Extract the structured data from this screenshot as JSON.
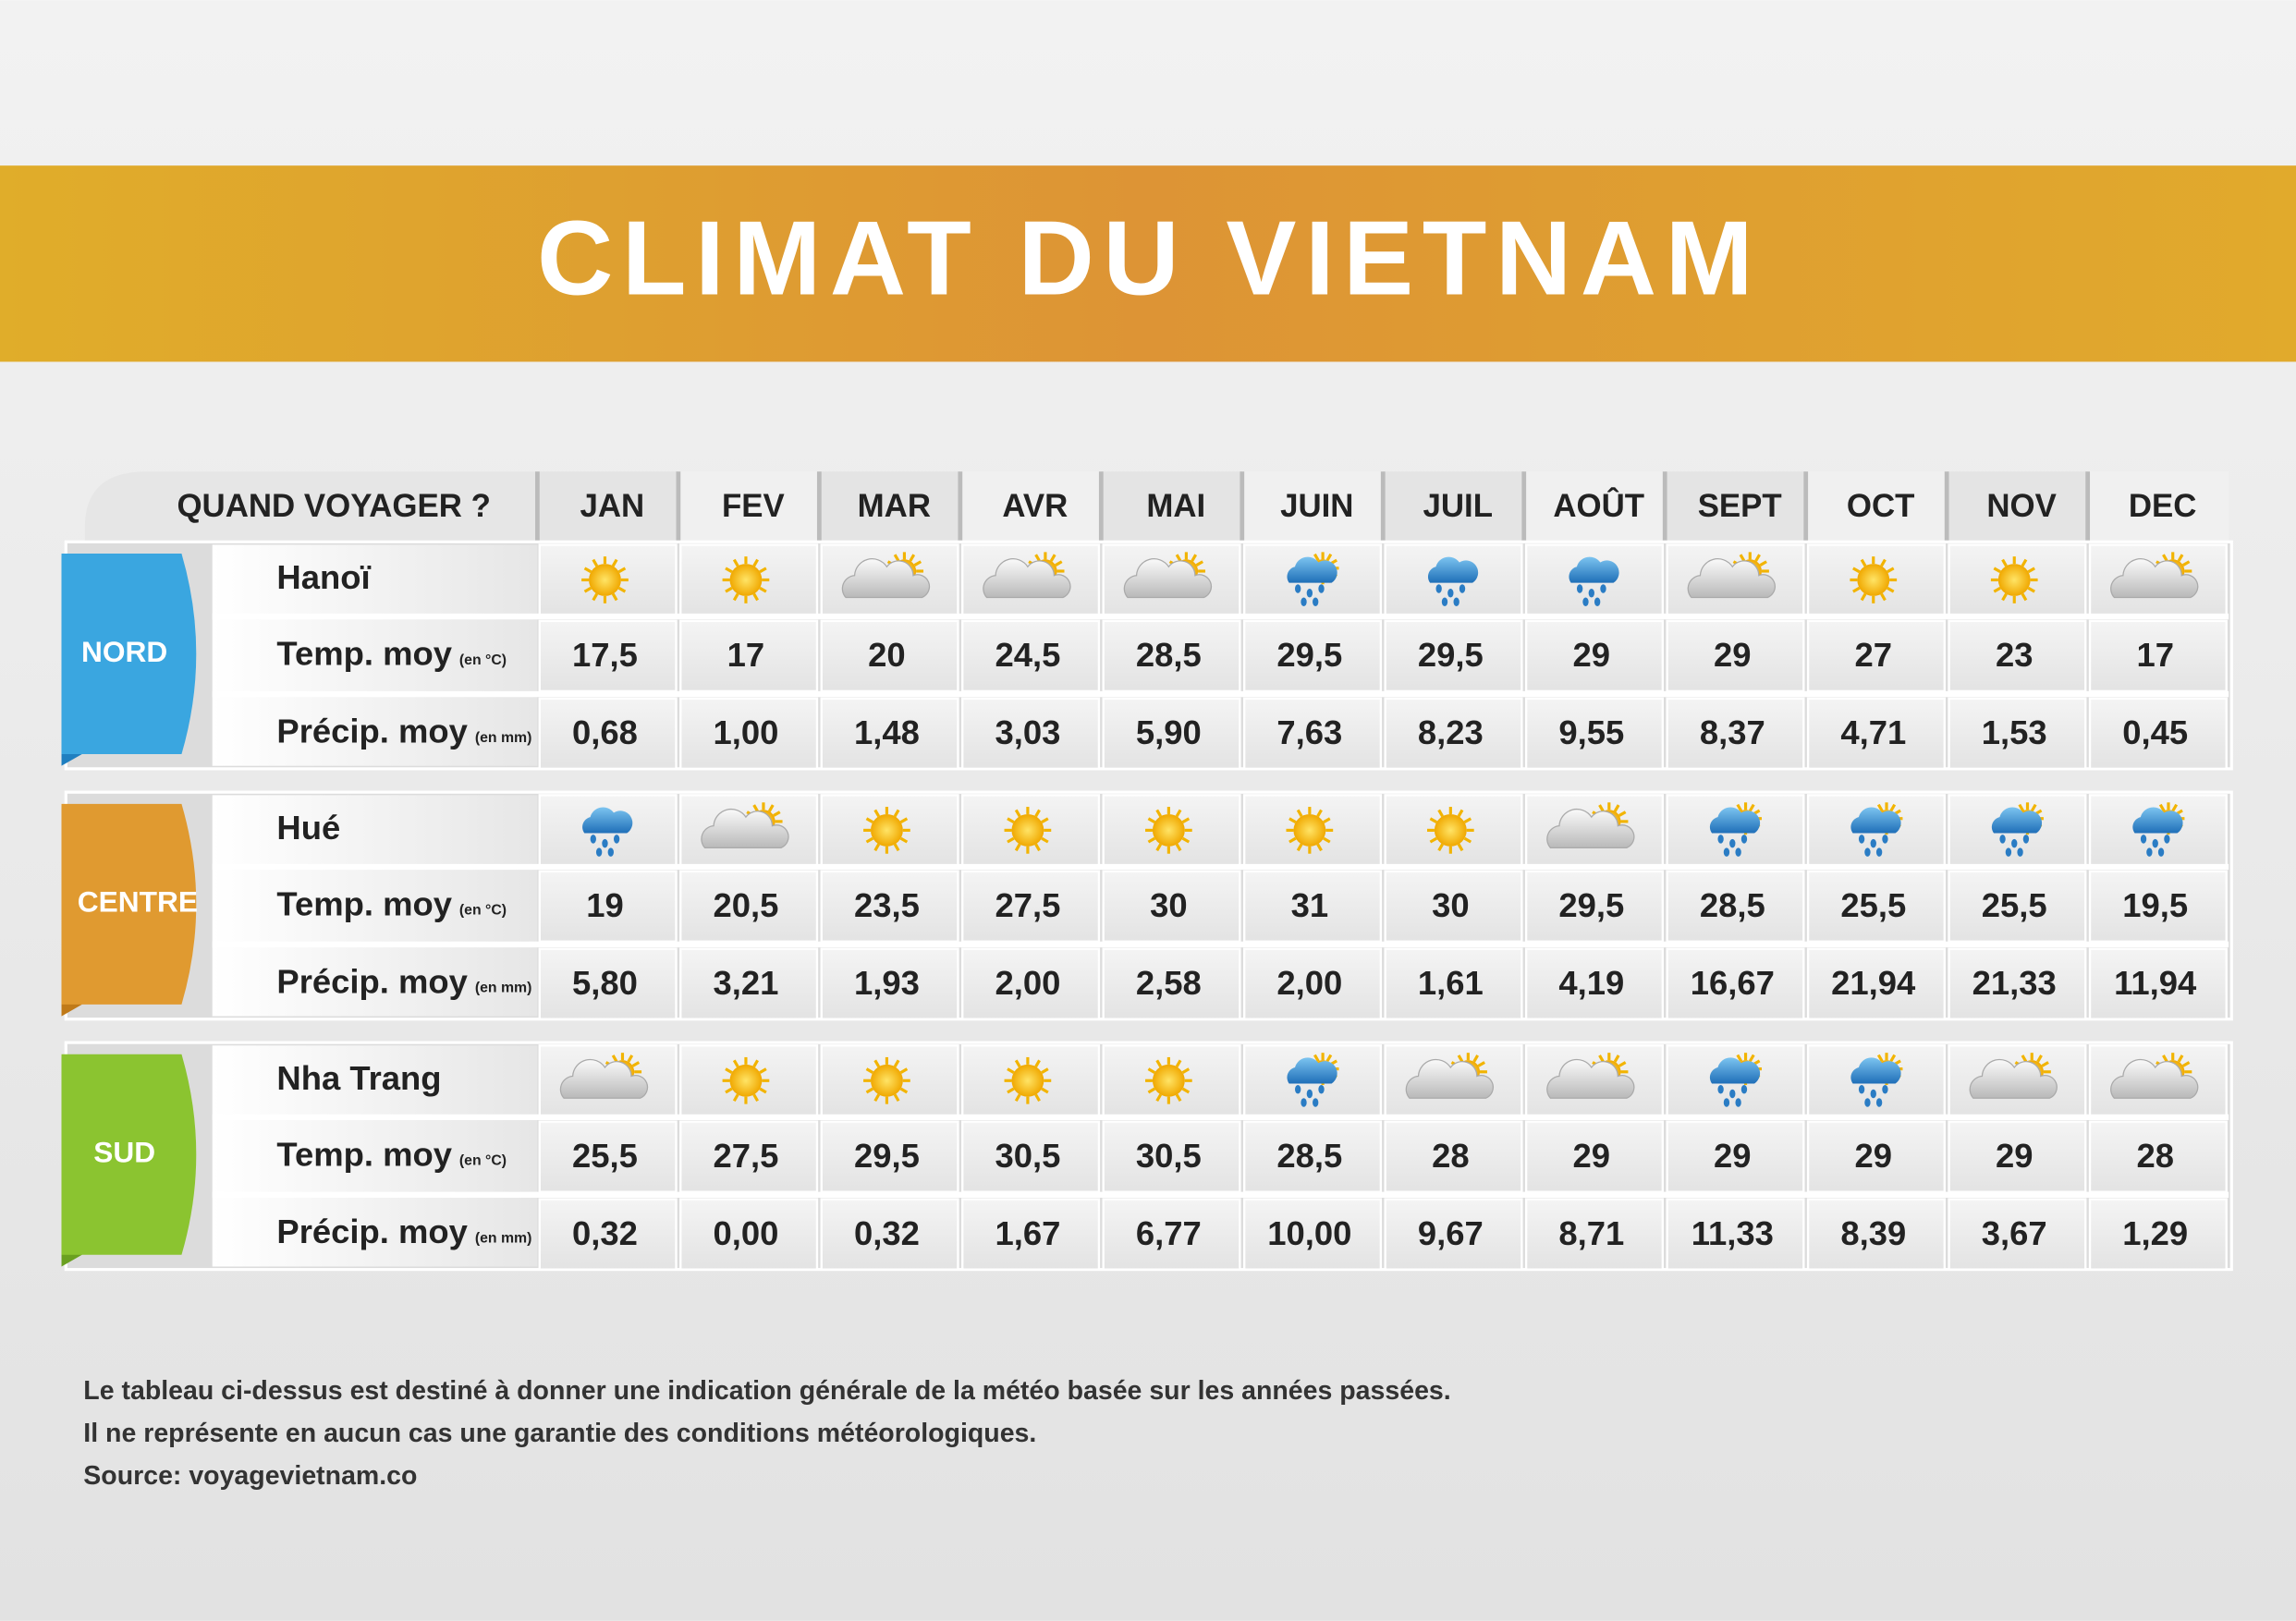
{
  "title": "CLIMAT DU VIETNAM",
  "header": {
    "label": "QUAND VOYAGER ?",
    "months": [
      "JAN",
      "FEV",
      "MAR",
      "AVR",
      "MAI",
      "JUIN",
      "JUIL",
      "AOÛT",
      "SEPT",
      "OCT",
      "NOV",
      "DEC"
    ]
  },
  "regions": [
    {
      "name": "NORD",
      "city": "Hanoï",
      "temp": {
        "label": "Temp. moy",
        "unit": "(en °C)",
        "values": [
          "17,5",
          "17",
          "20",
          "24,5",
          "28,5",
          "29,5",
          "29,5",
          "29",
          "29",
          "27",
          "23",
          "17"
        ]
      },
      "precip": {
        "label": "Précip. moy",
        "unit": "(en mm)",
        "values": [
          "0,68",
          "1,00",
          "1,48",
          "3,03",
          "5,90",
          "7,63",
          "8,23",
          "9,55",
          "8,37",
          "4,71",
          "1,53",
          "0,45"
        ]
      }
    },
    {
      "name": "CENTRE",
      "city": "Hué",
      "temp": {
        "label": "Temp. moy",
        "unit": "(en °C)",
        "values": [
          "19",
          "20,5",
          "23,5",
          "27,5",
          "30",
          "31",
          "30",
          "29,5",
          "28,5",
          "25,5",
          "25,5",
          "19,5"
        ]
      },
      "precip": {
        "label": "Précip. moy",
        "unit": "(en mm)",
        "values": [
          "5,80",
          "3,21",
          "1,93",
          "2,00",
          "2,58",
          "2,00",
          "1,61",
          "4,19",
          "16,67",
          "21,94",
          "21,33",
          "11,94"
        ]
      }
    },
    {
      "name": "SUD",
      "city": "Nha Trang",
      "temp": {
        "label": "Temp. moy",
        "unit": "(en °C)",
        "values": [
          "25,5",
          "27,5",
          "29,5",
          "30,5",
          "30,5",
          "28,5",
          "28",
          "29",
          "29",
          "29",
          "29",
          "28"
        ]
      },
      "precip": {
        "label": "Précip. moy",
        "unit": "(en mm)",
        "values": [
          "0,32",
          "0,00",
          "0,32",
          "1,67",
          "6,77",
          "10,00",
          "9,67",
          "8,71",
          "11,33",
          "8,39",
          "3,67",
          "1,29"
        ]
      }
    }
  ],
  "footer": [
    "Le tableau ci-dessus est destiné à donner une indication générale de la météo basée sur les années passées.",
    "Il ne représente en aucun cas une garantie des conditions météorologiques.",
    "Source: voyagevietnam.co"
  ]
}
